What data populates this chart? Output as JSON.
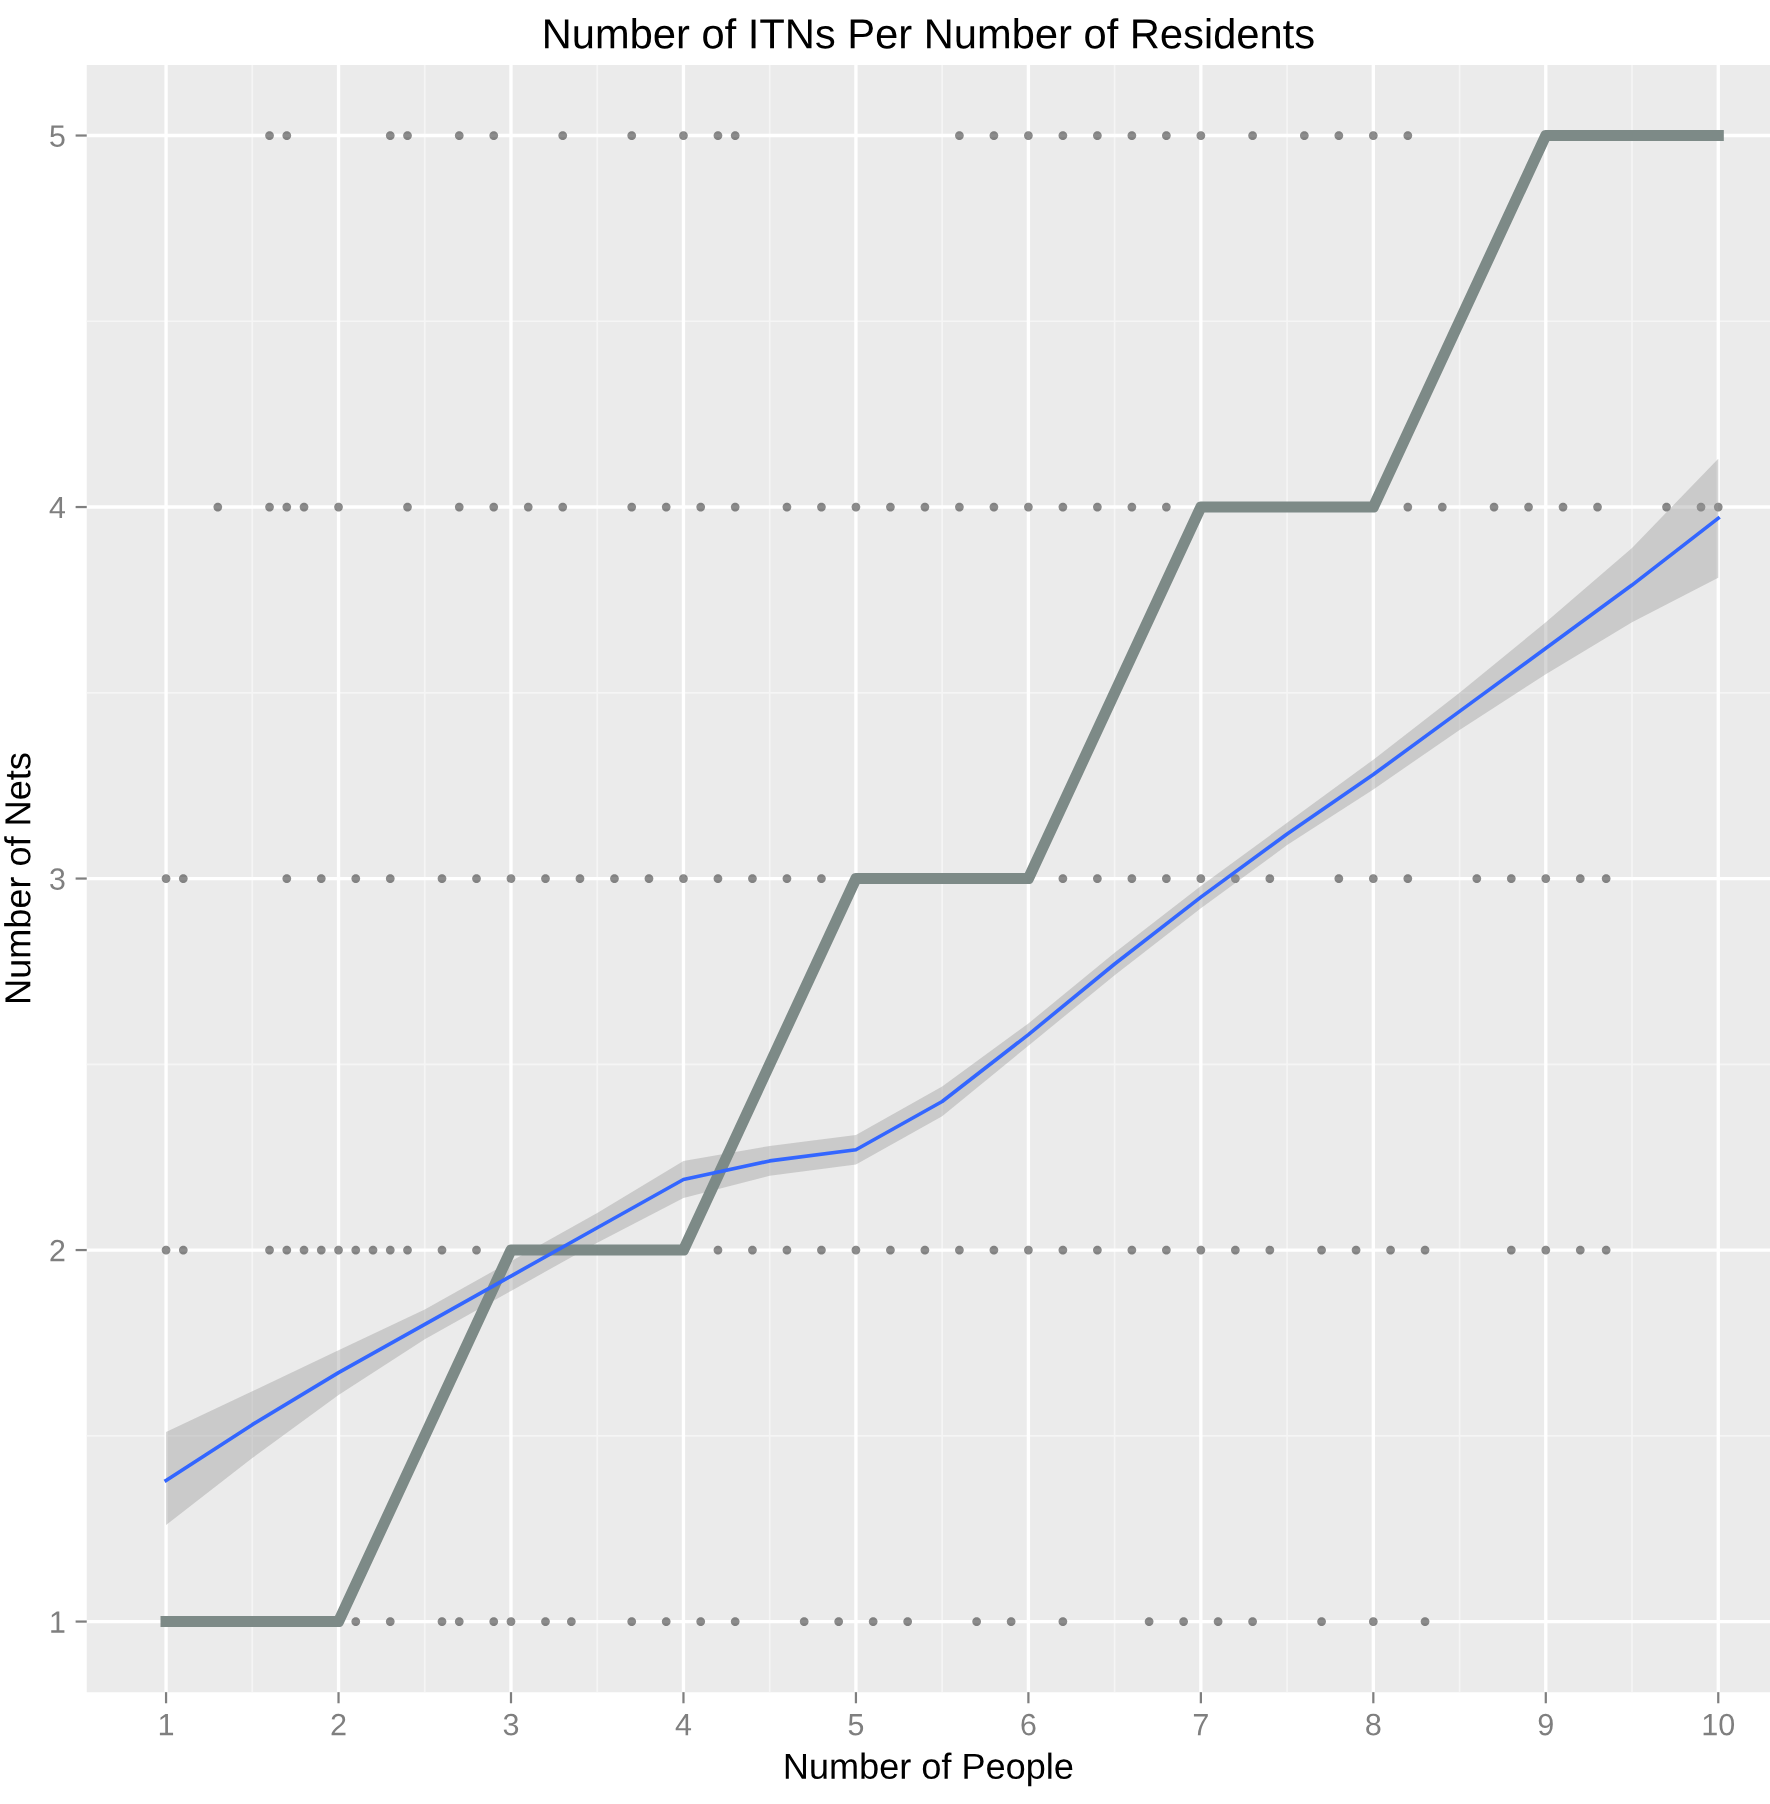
{
  "chart_data": {
    "type": "scatter",
    "title": "Number of ITNs Per Number of Residents",
    "xlabel": "Number of People",
    "ylabel": "Number of Nets",
    "xlim": [
      0.54,
      10.3
    ],
    "ylim": [
      0.81,
      5.19
    ],
    "xticks": [
      1,
      2,
      3,
      4,
      5,
      6,
      7,
      8,
      9,
      10
    ],
    "yticks": [
      1,
      2,
      3,
      4,
      5
    ],
    "grid": true,
    "series": [
      {
        "color": "#000000",
        "marker": "circle",
        "x": [
          2.1,
          2.3,
          2.6,
          2.7,
          2.9,
          3.0,
          3.2,
          3.35,
          3.7,
          3.9,
          4.1,
          4.3,
          4.7,
          4.9,
          5.1,
          5.3,
          5.7,
          5.9,
          6.2,
          6.7,
          6.9,
          7.1,
          7.3,
          7.7,
          8.0,
          8.3,
          1.0,
          1.1,
          1.6,
          1.7,
          1.8,
          1.9,
          2.0,
          2.1,
          2.2,
          2.3,
          2.4,
          2.6,
          2.8,
          4.2,
          4.4,
          4.6,
          4.8,
          5.0,
          5.2,
          5.4,
          5.6,
          5.8,
          6.0,
          6.2,
          6.4,
          6.6,
          6.8,
          7.0,
          7.2,
          7.4,
          7.7,
          7.9,
          8.1,
          8.3,
          8.8,
          9.0,
          9.2,
          9.35,
          1.0,
          1.1,
          1.7,
          1.9,
          2.1,
          2.3,
          2.6,
          2.8,
          3.0,
          3.2,
          3.4,
          3.6,
          3.8,
          4.0,
          4.2,
          4.4,
          4.6,
          4.8,
          6.2,
          6.4,
          6.6,
          6.8,
          7.0,
          7.2,
          7.4,
          7.8,
          8.0,
          8.2,
          8.6,
          8.8,
          9.0,
          9.2,
          9.35,
          1.3,
          1.6,
          1.7,
          1.8,
          2.0,
          2.4,
          2.7,
          2.9,
          3.1,
          3.3,
          3.7,
          3.9,
          4.1,
          4.3,
          4.6,
          4.8,
          5.0,
          5.2,
          5.4,
          5.6,
          5.8,
          6.0,
          6.2,
          6.4,
          6.6,
          6.8,
          8.2,
          8.4,
          8.7,
          8.9,
          9.1,
          9.3,
          9.7,
          9.9,
          10.0,
          1.6,
          1.7,
          2.3,
          2.4,
          2.7,
          2.9,
          3.3,
          3.7,
          4.0,
          4.2,
          4.3,
          5.6,
          5.8,
          6.0,
          6.2,
          6.4,
          6.6,
          6.8,
          7.0,
          7.3,
          7.6,
          7.8,
          8.0,
          8.2
        ],
        "values": [
          1,
          1,
          1,
          1,
          1,
          1,
          1,
          1,
          1,
          1,
          1,
          1,
          1,
          1,
          1,
          1,
          1,
          1,
          1,
          1,
          1,
          1,
          1,
          1,
          1,
          1,
          2,
          2,
          2,
          2,
          2,
          2,
          2,
          2,
          2,
          2,
          2,
          2,
          2,
          2,
          2,
          2,
          2,
          2,
          2,
          2,
          2,
          2,
          2,
          2,
          2,
          2,
          2,
          2,
          2,
          2,
          2,
          2,
          2,
          2,
          2,
          2,
          2,
          2,
          3,
          3,
          3,
          3,
          3,
          3,
          3,
          3,
          3,
          3,
          3,
          3,
          3,
          3,
          3,
          3,
          3,
          3,
          3,
          3,
          3,
          3,
          3,
          3,
          3,
          3,
          3,
          3,
          3,
          3,
          3,
          3,
          3,
          4,
          4,
          4,
          4,
          4,
          4,
          4,
          4,
          4,
          4,
          4,
          4,
          4,
          4,
          4,
          4,
          4,
          4,
          4,
          4,
          4,
          4,
          4,
          4,
          4,
          4,
          4,
          4,
          4,
          4,
          4,
          4,
          4,
          4,
          4,
          5,
          5,
          5,
          5,
          5,
          5,
          5,
          5,
          5,
          5,
          5,
          5,
          5,
          5,
          5,
          5,
          5,
          5,
          5,
          5,
          5,
          5,
          5,
          5
        ]
      },
      {
        "type": "line",
        "color": "#7d8a87",
        "marker": "none",
        "line_style": "solid",
        "x": [
          1,
          2,
          3,
          4,
          5,
          6,
          7,
          8,
          9,
          10
        ],
        "values": [
          1,
          1,
          2,
          2,
          3,
          3,
          4,
          4,
          5,
          5
        ]
      },
      {
        "type": "line",
        "color": "#3366ff",
        "marker": "none",
        "line_style": "solid",
        "x": [
          1,
          1.5,
          2,
          2.5,
          3,
          3.5,
          4,
          4.5,
          5,
          5.5,
          6,
          6.5,
          7,
          7.5,
          8,
          8.5,
          9,
          9.5,
          10
        ],
        "values": [
          1.38,
          1.53,
          1.67,
          1.8,
          1.93,
          2.06,
          2.19,
          2.24,
          2.27,
          2.4,
          2.58,
          2.77,
          2.95,
          3.12,
          3.28,
          3.45,
          3.62,
          3.79,
          3.97
        ],
        "lower": [
          1.26,
          1.44,
          1.61,
          1.76,
          1.89,
          2.02,
          2.14,
          2.2,
          2.23,
          2.36,
          2.55,
          2.74,
          2.92,
          3.09,
          3.24,
          3.4,
          3.55,
          3.69,
          3.81
        ],
        "upper": [
          1.51,
          1.62,
          1.73,
          1.84,
          1.97,
          2.1,
          2.24,
          2.28,
          2.31,
          2.44,
          2.61,
          2.8,
          2.98,
          3.15,
          3.32,
          3.5,
          3.69,
          3.89,
          4.13
        ]
      }
    ]
  }
}
